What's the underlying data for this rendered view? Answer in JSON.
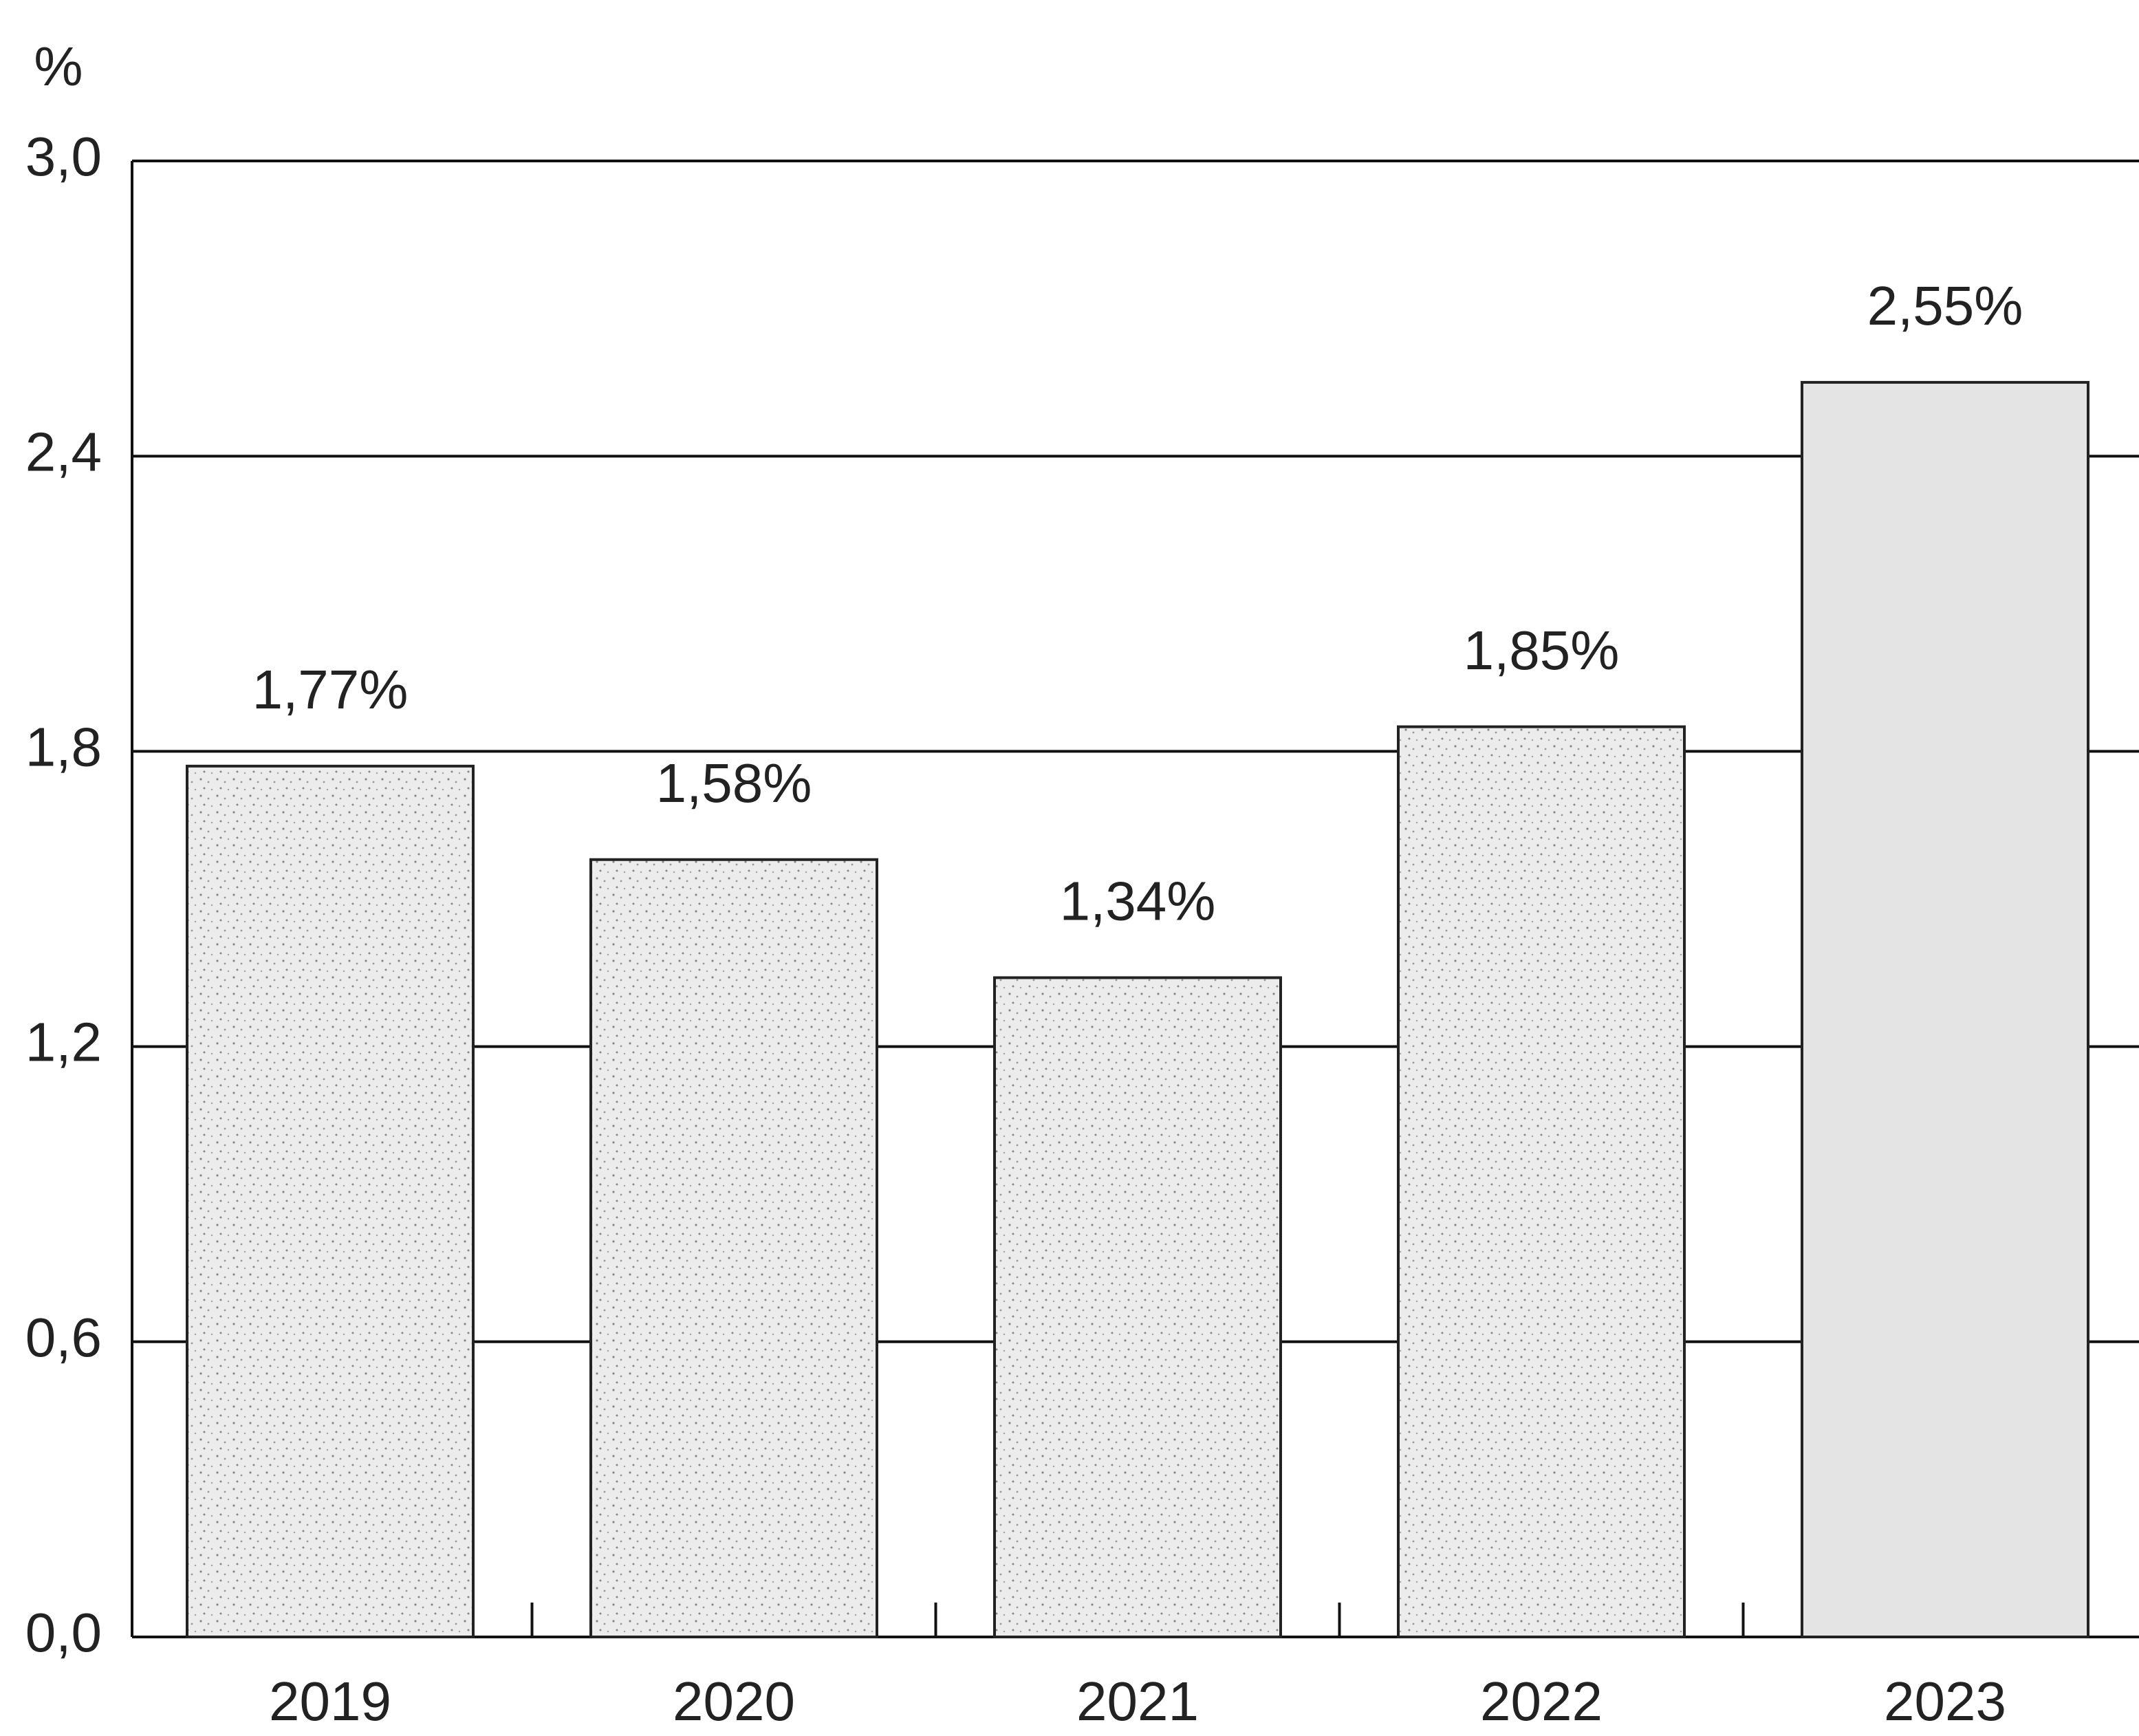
{
  "chart_data": {
    "type": "bar",
    "y_axis_label": "%",
    "categories": [
      "2019",
      "2020",
      "2021",
      "2022",
      "2023"
    ],
    "values": [
      1.77,
      1.58,
      1.34,
      1.85,
      2.55
    ],
    "value_labels": [
      "1,77%",
      "1,58%",
      "1,34%",
      "1,85%",
      "2,55%"
    ],
    "color": "#e4e4e4",
    "ylim": [
      0,
      3.0
    ],
    "yticks": [
      {
        "value": 0,
        "label": "0,0"
      },
      {
        "value": 0.6,
        "label": "0,6"
      },
      {
        "value": 1.2,
        "label": "1,2"
      },
      {
        "value": 1.8,
        "label": "1,8"
      },
      {
        "value": 2.4,
        "label": "2,4"
      },
      {
        "value": 3.0,
        "label": "3,0"
      }
    ],
    "grid": true
  }
}
